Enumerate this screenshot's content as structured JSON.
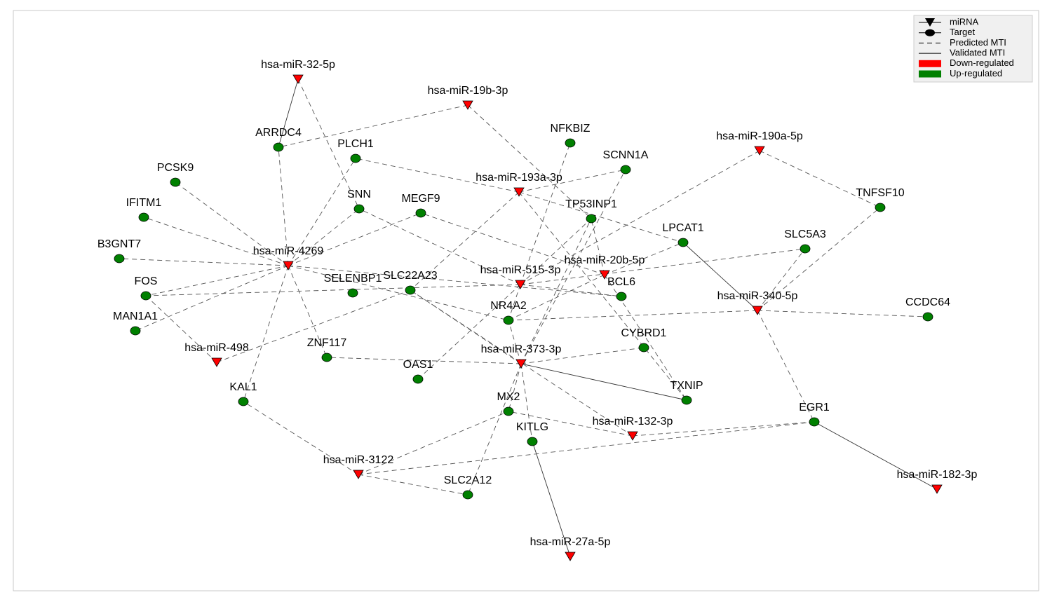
{
  "nodes": [
    {
      "label": "hsa-miR-32-5p",
      "kind": "miRNA"
    },
    {
      "label": "hsa-miR-19b-3p",
      "kind": "miRNA"
    },
    {
      "label": "hsa-miR-190a-5p",
      "kind": "miRNA"
    },
    {
      "label": "hsa-miR-193a-3p",
      "kind": "miRNA"
    },
    {
      "label": "hsa-miR-4269",
      "kind": "miRNA"
    },
    {
      "label": "hsa-miR-515-3p",
      "kind": "miRNA"
    },
    {
      "label": "hsa-miR-20b-5p",
      "kind": "miRNA"
    },
    {
      "label": "hsa-miR-340-5p",
      "kind": "miRNA"
    },
    {
      "label": "hsa-miR-498",
      "kind": "miRNA"
    },
    {
      "label": "hsa-miR-373-3p",
      "kind": "miRNA"
    },
    {
      "label": "hsa-miR-132-3p",
      "kind": "miRNA"
    },
    {
      "label": "hsa-miR-3122",
      "kind": "miRNA"
    },
    {
      "label": "hsa-miR-182-3p",
      "kind": "miRNA"
    },
    {
      "label": "hsa-miR-27a-5p",
      "kind": "miRNA"
    },
    {
      "label": "ARRDC4",
      "kind": "target"
    },
    {
      "label": "PLCH1",
      "kind": "target"
    },
    {
      "label": "NFKBIZ",
      "kind": "target"
    },
    {
      "label": "SCNN1A",
      "kind": "target"
    },
    {
      "label": "PCSK9",
      "kind": "target"
    },
    {
      "label": "TNFSF10",
      "kind": "target"
    },
    {
      "label": "IFITM1",
      "kind": "target"
    },
    {
      "label": "SNN",
      "kind": "target"
    },
    {
      "label": "MEGF9",
      "kind": "target"
    },
    {
      "label": "TP53INP1",
      "kind": "target"
    },
    {
      "label": "LPCAT1",
      "kind": "target"
    },
    {
      "label": "SLC5A3",
      "kind": "target"
    },
    {
      "label": "B3GNT7",
      "kind": "target"
    },
    {
      "label": "FOS",
      "kind": "target"
    },
    {
      "label": "SELENBP1",
      "kind": "target"
    },
    {
      "label": "SLC22A23",
      "kind": "target"
    },
    {
      "label": "BCL6",
      "kind": "target"
    },
    {
      "label": "CCDC64",
      "kind": "target"
    },
    {
      "label": "MAN1A1",
      "kind": "target"
    },
    {
      "label": "NR4A2",
      "kind": "target"
    },
    {
      "label": "CYBRD1",
      "kind": "target"
    },
    {
      "label": "ZNF117",
      "kind": "target"
    },
    {
      "label": "OAS1",
      "kind": "target"
    },
    {
      "label": "KAL1",
      "kind": "target"
    },
    {
      "label": "TXNIP",
      "kind": "target"
    },
    {
      "label": "MX2",
      "kind": "target"
    },
    {
      "label": "EGR1",
      "kind": "target"
    },
    {
      "label": "KITLG",
      "kind": "target"
    },
    {
      "label": "SLC2A12",
      "kind": "target"
    }
  ],
  "edges": [
    {
      "from": 0,
      "to": 14,
      "style": "solid"
    },
    {
      "from": 7,
      "to": 24,
      "style": "solid"
    },
    {
      "from": 9,
      "to": 38,
      "style": "solid"
    },
    {
      "from": 12,
      "to": 40,
      "style": "solid"
    },
    {
      "from": 13,
      "to": 41,
      "style": "solid"
    },
    {
      "from": 0,
      "to": 21,
      "style": "dashed"
    },
    {
      "from": 1,
      "to": 14,
      "style": "dashed"
    },
    {
      "from": 1,
      "to": 23,
      "style": "dashed"
    },
    {
      "from": 4,
      "to": 14,
      "style": "dashed"
    },
    {
      "from": 4,
      "to": 15,
      "style": "dashed"
    },
    {
      "from": 4,
      "to": 18,
      "style": "dashed"
    },
    {
      "from": 4,
      "to": 20,
      "style": "dashed"
    },
    {
      "from": 4,
      "to": 26,
      "style": "dashed"
    },
    {
      "from": 4,
      "to": 27,
      "style": "dashed"
    },
    {
      "from": 4,
      "to": 32,
      "style": "dashed"
    },
    {
      "from": 4,
      "to": 21,
      "style": "dashed"
    },
    {
      "from": 4,
      "to": 22,
      "style": "dashed"
    },
    {
      "from": 4,
      "to": 35,
      "style": "dashed"
    },
    {
      "from": 4,
      "to": 37,
      "style": "dashed"
    },
    {
      "from": 4,
      "to": 30,
      "style": "dashed"
    },
    {
      "from": 4,
      "to": 33,
      "style": "dashed"
    },
    {
      "from": 3,
      "to": 15,
      "style": "dashed"
    },
    {
      "from": 3,
      "to": 17,
      "style": "dashed"
    },
    {
      "from": 3,
      "to": 29,
      "style": "dashed"
    },
    {
      "from": 3,
      "to": 24,
      "style": "dashed"
    },
    {
      "from": 3,
      "to": 38,
      "style": "dashed"
    },
    {
      "from": 2,
      "to": 5,
      "style": "dashed"
    },
    {
      "from": 2,
      "to": 19,
      "style": "dashed"
    },
    {
      "from": 5,
      "to": 21,
      "style": "dashed"
    },
    {
      "from": 5,
      "to": 33,
      "style": "dashed"
    },
    {
      "from": 5,
      "to": 36,
      "style": "dashed"
    },
    {
      "from": 5,
      "to": 30,
      "style": "dashed"
    },
    {
      "from": 5,
      "to": 23,
      "style": "dashed"
    },
    {
      "from": 5,
      "to": 16,
      "style": "dashed"
    },
    {
      "from": 5,
      "to": 27,
      "style": "dashed"
    },
    {
      "from": 5,
      "to": 25,
      "style": "dashed"
    },
    {
      "from": 6,
      "to": 22,
      "style": "dashed"
    },
    {
      "from": 6,
      "to": 23,
      "style": "dashed"
    },
    {
      "from": 6,
      "to": 24,
      "style": "dashed"
    },
    {
      "from": 6,
      "to": 33,
      "style": "dashed"
    },
    {
      "from": 6,
      "to": 38,
      "style": "dashed"
    },
    {
      "from": 7,
      "to": 19,
      "style": "dashed"
    },
    {
      "from": 7,
      "to": 25,
      "style": "dashed"
    },
    {
      "from": 7,
      "to": 31,
      "style": "dashed"
    },
    {
      "from": 7,
      "to": 33,
      "style": "dashed"
    },
    {
      "from": 7,
      "to": 40,
      "style": "dashed"
    },
    {
      "from": 8,
      "to": 27,
      "style": "dashed"
    },
    {
      "from": 8,
      "to": 29,
      "style": "dashed"
    },
    {
      "from": 9,
      "to": 17,
      "style": "dashed"
    },
    {
      "from": 9,
      "to": 23,
      "style": "dashed"
    },
    {
      "from": 9,
      "to": 33,
      "style": "dashed"
    },
    {
      "from": 9,
      "to": 34,
      "style": "dashed"
    },
    {
      "from": 9,
      "to": 35,
      "style": "dashed"
    },
    {
      "from": 9,
      "to": 39,
      "style": "dashed"
    },
    {
      "from": 9,
      "to": 41,
      "style": "dashed"
    },
    {
      "from": 9,
      "to": 29,
      "style": "dashed"
    },
    {
      "from": 9,
      "to": 42,
      "style": "dashed"
    },
    {
      "from": 10,
      "to": 39,
      "style": "dashed"
    },
    {
      "from": 10,
      "to": 40,
      "style": "dashed"
    },
    {
      "from": 10,
      "to": 29,
      "style": "dashed"
    },
    {
      "from": 11,
      "to": 37,
      "style": "dashed"
    },
    {
      "from": 11,
      "to": 39,
      "style": "dashed"
    },
    {
      "from": 11,
      "to": 40,
      "style": "dashed"
    },
    {
      "from": 11,
      "to": 42,
      "style": "dashed"
    }
  ],
  "legend": [
    {
      "label": "miRNA",
      "symbol": "triangle"
    },
    {
      "label": "Target",
      "symbol": "circle"
    },
    {
      "label": "Predicted MTI",
      "symbol": "dashed"
    },
    {
      "label": "Validated MTI",
      "symbol": "solid"
    },
    {
      "label": "Down-regulated",
      "symbol": "patch",
      "color": "#ff0000"
    },
    {
      "label": "Up-regulated",
      "symbol": "patch",
      "color": "#008000"
    }
  ],
  "colors": {
    "miRNA": "#ff0000",
    "target": "#008000"
  }
}
